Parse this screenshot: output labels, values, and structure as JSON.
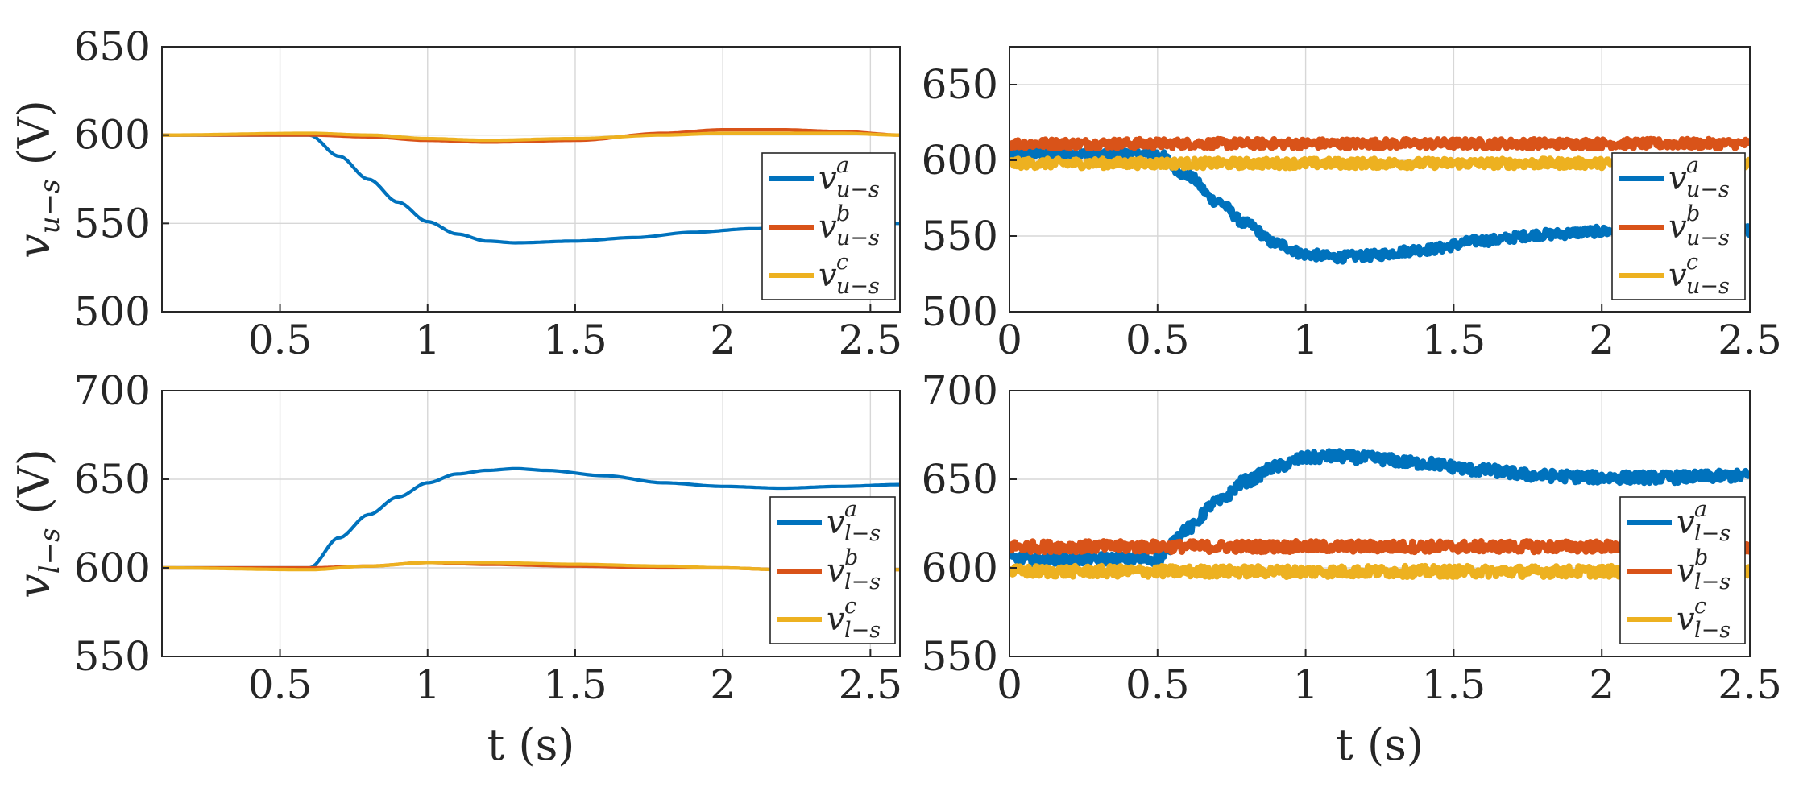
{
  "colors": {
    "a": "#0072BD",
    "b": "#D95319",
    "c": "#EDB120"
  },
  "chart_data": [
    {
      "type": "line",
      "panel": "top-left",
      "xlim": [
        0.1,
        2.6
      ],
      "ylim": [
        500,
        650
      ],
      "xticks": [
        0.5,
        1,
        1.5,
        2,
        2.5
      ],
      "xtick_labels": [
        "0.5",
        "1",
        "1.5",
        "2",
        "2.5"
      ],
      "yticks": [
        500,
        550,
        600,
        650
      ],
      "ytick_labels": [
        "500",
        "550",
        "600",
        "650"
      ],
      "ylabel_sym": "v",
      "ylabel_sub": "u−s",
      "ylabel_unit": "(V)",
      "xlabel": "",
      "legend_position": "right",
      "noise": 0,
      "grid": true,
      "series": [
        {
          "key": "a",
          "name_sym": "v",
          "name_sup": "a",
          "name_sub": "u−s",
          "x": [
            0.1,
            0.6,
            0.7,
            0.8,
            0.9,
            1.0,
            1.1,
            1.2,
            1.3,
            1.5,
            1.7,
            1.9,
            2.1,
            2.3,
            2.5,
            2.6
          ],
          "y": [
            600,
            600,
            588,
            575,
            562,
            551,
            544,
            540,
            539,
            540,
            542,
            545,
            547,
            549,
            550,
            550
          ]
        },
        {
          "key": "b",
          "name_sym": "v",
          "name_sup": "b",
          "name_sub": "u−s",
          "x": [
            0.1,
            0.6,
            0.8,
            1.0,
            1.2,
            1.5,
            1.8,
            2.0,
            2.2,
            2.4,
            2.6
          ],
          "y": [
            600,
            600,
            599,
            597,
            596,
            597,
            601,
            603,
            603,
            602,
            600
          ]
        },
        {
          "key": "c",
          "name_sym": "v",
          "name_sup": "c",
          "name_sub": "u−s",
          "x": [
            0.1,
            0.6,
            0.8,
            1.0,
            1.2,
            1.5,
            1.8,
            2.0,
            2.2,
            2.4,
            2.6
          ],
          "y": [
            600,
            601,
            600,
            598,
            597,
            598,
            600,
            601,
            601,
            601,
            600
          ]
        }
      ]
    },
    {
      "type": "line",
      "panel": "top-right",
      "xlim": [
        0,
        2.5
      ],
      "ylim": [
        500,
        675
      ],
      "xticks": [
        0,
        0.5,
        1,
        1.5,
        2,
        2.5
      ],
      "xtick_labels": [
        "0",
        "0.5",
        "1",
        "1.5",
        "2",
        "2.5"
      ],
      "yticks": [
        500,
        550,
        600,
        650
      ],
      "ytick_labels": [
        "500",
        "550",
        "600",
        "650"
      ],
      "xlabel": "",
      "legend_position": "right",
      "noise": 3,
      "grid": true,
      "series": [
        {
          "key": "a",
          "name_sym": "v",
          "name_sup": "a",
          "name_sub": "u−s",
          "x": [
            0,
            0.5,
            0.6,
            0.7,
            0.8,
            0.9,
            1.0,
            1.1,
            1.2,
            1.4,
            1.6,
            1.8,
            2.0,
            2.2,
            2.5
          ],
          "y": [
            604,
            604,
            590,
            573,
            558,
            545,
            538,
            536,
            537,
            541,
            547,
            551,
            553,
            554,
            554
          ]
        },
        {
          "key": "b",
          "name_sym": "v",
          "name_sup": "b",
          "name_sub": "u−s",
          "x": [
            0,
            0.5,
            1.0,
            1.5,
            2.0,
            2.5
          ],
          "y": [
            611,
            611,
            611,
            611,
            611,
            611
          ]
        },
        {
          "key": "c",
          "name_sym": "v",
          "name_sup": "c",
          "name_sub": "u−s",
          "x": [
            0,
            0.5,
            1.0,
            1.5,
            2.0,
            2.5
          ],
          "y": [
            598,
            598,
            598,
            598,
            598,
            598
          ]
        }
      ]
    },
    {
      "type": "line",
      "panel": "bottom-left",
      "xlim": [
        0.1,
        2.6
      ],
      "ylim": [
        550,
        700
      ],
      "xticks": [
        0.5,
        1,
        1.5,
        2,
        2.5
      ],
      "xtick_labels": [
        "0.5",
        "1",
        "1.5",
        "2",
        "2.5"
      ],
      "yticks": [
        550,
        600,
        650,
        700
      ],
      "ytick_labels": [
        "550",
        "600",
        "650",
        "700"
      ],
      "ylabel_sym": "v",
      "ylabel_sub": "l−s",
      "ylabel_unit": "(V)",
      "xlabel": "t (s)",
      "legend_position": "right",
      "noise": 0,
      "grid": true,
      "series": [
        {
          "key": "a",
          "name_sym": "v",
          "name_sup": "a",
          "name_sub": "l−s",
          "x": [
            0.1,
            0.6,
            0.7,
            0.8,
            0.9,
            1.0,
            1.1,
            1.2,
            1.3,
            1.4,
            1.6,
            1.8,
            2.0,
            2.2,
            2.4,
            2.6
          ],
          "y": [
            600,
            600,
            617,
            630,
            640,
            648,
            653,
            655,
            656,
            655,
            652,
            648,
            646,
            645,
            646,
            647
          ]
        },
        {
          "key": "b",
          "name_sym": "v",
          "name_sup": "b",
          "name_sub": "l−s",
          "x": [
            0.1,
            0.6,
            0.8,
            1.0,
            1.2,
            1.5,
            1.8,
            2.0,
            2.2,
            2.4,
            2.6
          ],
          "y": [
            600,
            600,
            601,
            603,
            602,
            601,
            600,
            600,
            599,
            599,
            599
          ]
        },
        {
          "key": "c",
          "name_sym": "v",
          "name_sup": "c",
          "name_sub": "l−s",
          "x": [
            0.1,
            0.6,
            0.8,
            1.0,
            1.2,
            1.5,
            1.8,
            2.0,
            2.2,
            2.4,
            2.6
          ],
          "y": [
            600,
            599,
            601,
            603,
            603,
            602,
            601,
            600,
            599,
            599,
            599
          ]
        }
      ]
    },
    {
      "type": "line",
      "panel": "bottom-right",
      "xlim": [
        0,
        2.5
      ],
      "ylim": [
        550,
        700
      ],
      "xticks": [
        0,
        0.5,
        1,
        1.5,
        2,
        2.5
      ],
      "xtick_labels": [
        "0",
        "0.5",
        "1",
        "1.5",
        "2",
        "2.5"
      ],
      "yticks": [
        550,
        600,
        650,
        700
      ],
      "ytick_labels": [
        "550",
        "600",
        "650",
        "700"
      ],
      "xlabel": "t (s)",
      "legend_position": "right",
      "noise": 3,
      "grid": true,
      "series": [
        {
          "key": "a",
          "name_sym": "v",
          "name_sup": "a",
          "name_sub": "l−s",
          "x": [
            0,
            0.5,
            0.6,
            0.7,
            0.8,
            0.9,
            1.0,
            1.1,
            1.2,
            1.4,
            1.6,
            1.8,
            2.0,
            2.2,
            2.5
          ],
          "y": [
            605,
            605,
            622,
            637,
            649,
            657,
            662,
            663,
            662,
            659,
            655,
            652,
            651,
            651,
            652
          ]
        },
        {
          "key": "b",
          "name_sym": "v",
          "name_sup": "b",
          "name_sub": "l−s",
          "x": [
            0,
            0.5,
            1.0,
            1.5,
            2.0,
            2.5
          ],
          "y": [
            612,
            612,
            612,
            612,
            612,
            612
          ]
        },
        {
          "key": "c",
          "name_sym": "v",
          "name_sup": "c",
          "name_sub": "l−s",
          "x": [
            0,
            0.5,
            1.0,
            1.5,
            2.0,
            2.5
          ],
          "y": [
            598,
            598,
            598,
            598,
            598,
            598
          ]
        }
      ]
    }
  ]
}
